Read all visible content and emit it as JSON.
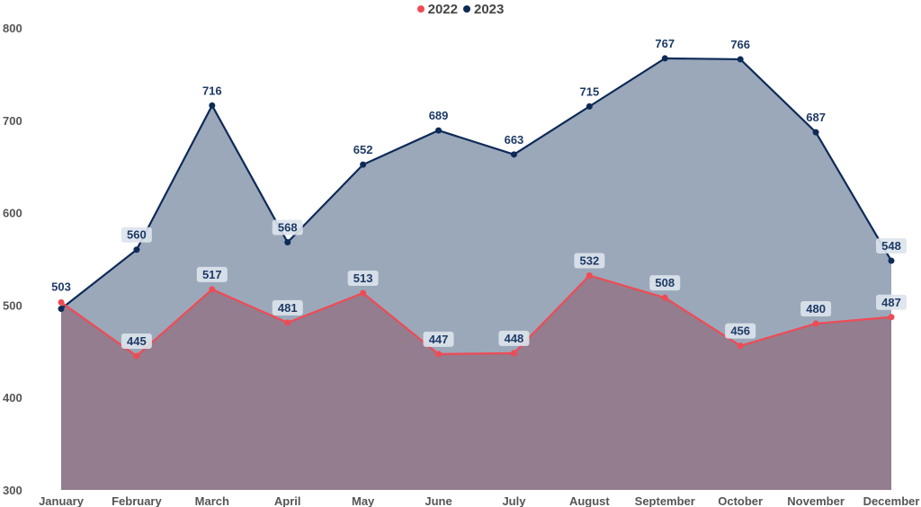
{
  "chart_data": {
    "type": "area",
    "categories": [
      "January",
      "February",
      "March",
      "April",
      "May",
      "June",
      "July",
      "August",
      "September",
      "October",
      "November",
      "December"
    ],
    "series": [
      {
        "name": "2022",
        "color": "#ef4b55",
        "values": [
          503,
          445,
          517,
          481,
          513,
          447,
          448,
          532,
          508,
          456,
          480,
          487
        ]
      },
      {
        "name": "2023",
        "color": "#0e2a57",
        "values": [
          496,
          560,
          716,
          568,
          652,
          689,
          663,
          715,
          767,
          766,
          687,
          548
        ]
      }
    ],
    "data_labels": {
      "2022": [
        "503",
        "445",
        "517",
        "481",
        "513",
        "447",
        "448",
        "532",
        "508",
        "456",
        "480",
        "487"
      ],
      "2023": [
        "",
        "560",
        "716",
        "568",
        "652",
        "689",
        "663",
        "715",
        "767",
        "766",
        "687",
        "548"
      ]
    },
    "ylim": [
      300,
      800
    ],
    "yticks": [
      300,
      400,
      500,
      600,
      700,
      800
    ],
    "legend_position": "top-center",
    "grid": false
  }
}
